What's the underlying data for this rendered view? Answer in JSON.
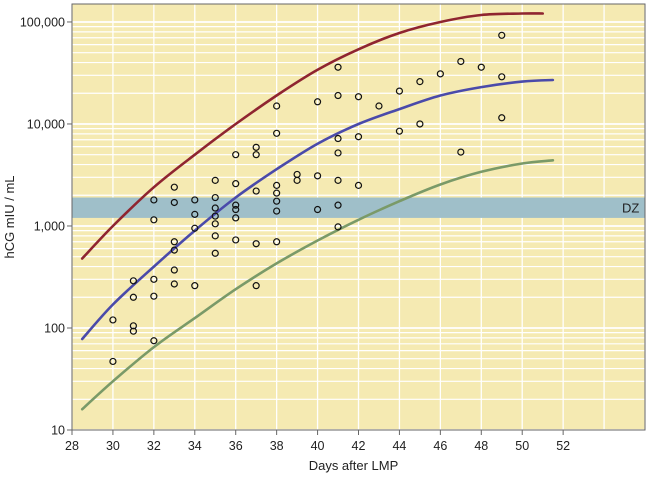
{
  "chart_data": {
    "type": "scatter",
    "xlabel": "Days after LMP",
    "ylabel": "hCG mIU / mL",
    "xlim": [
      28,
      56
    ],
    "ylim": [
      10,
      150000
    ],
    "y_scale": "log",
    "x_ticks": [
      "28",
      "30",
      "32",
      "34",
      "36",
      "38",
      "40",
      "42",
      "44",
      "46",
      "48",
      "50",
      "52"
    ],
    "y_ticks": [
      {
        "value": 10,
        "label": "10"
      },
      {
        "value": 100,
        "label": "100"
      },
      {
        "value": 1000,
        "label": "1,000"
      },
      {
        "value": 10000,
        "label": "10,000"
      },
      {
        "value": 100000,
        "label": "100,000"
      }
    ],
    "grid": true,
    "band": {
      "label": "DZ",
      "y_range": [
        1200,
        1900
      ],
      "color": "#9fbfc9"
    },
    "colors": {
      "plot_background": "#f5eab2",
      "grid": "#ffffff",
      "frame": "#666666",
      "points": "#111111"
    },
    "curves": [
      {
        "color": "#8f2530",
        "x": [
          28.5,
          30,
          32,
          34,
          36,
          38,
          40,
          42,
          44,
          46,
          48,
          50,
          51
        ],
        "y": [
          480,
          1000,
          2400,
          5000,
          10000,
          19000,
          34000,
          54000,
          78000,
          100000,
          117000,
          121000,
          121000
        ]
      },
      {
        "color": "#4a4aaa",
        "x": [
          28.5,
          30,
          32,
          34,
          36,
          38,
          40,
          42,
          44,
          46,
          48,
          50,
          51.5
        ],
        "y": [
          78,
          170,
          400,
          900,
          1900,
          3600,
          6400,
          10000,
          14000,
          19000,
          23000,
          26000,
          27000
        ]
      },
      {
        "color": "#7a9a68",
        "x": [
          28.5,
          30,
          32,
          34,
          36,
          38,
          40,
          42,
          44,
          46,
          48,
          50,
          51.5
        ],
        "y": [
          16,
          30,
          65,
          125,
          240,
          430,
          720,
          1150,
          1750,
          2550,
          3400,
          4100,
          4400
        ]
      }
    ],
    "points": [
      {
        "x": 30,
        "y": 120
      },
      {
        "x": 30,
        "y": 47
      },
      {
        "x": 31,
        "y": 290
      },
      {
        "x": 31,
        "y": 200
      },
      {
        "x": 31,
        "y": 105
      },
      {
        "x": 31,
        "y": 93
      },
      {
        "x": 32,
        "y": 1800
      },
      {
        "x": 32,
        "y": 1150
      },
      {
        "x": 32,
        "y": 300
      },
      {
        "x": 32,
        "y": 205
      },
      {
        "x": 32,
        "y": 75
      },
      {
        "x": 33,
        "y": 2400
      },
      {
        "x": 33,
        "y": 1700
      },
      {
        "x": 33,
        "y": 700
      },
      {
        "x": 33,
        "y": 580
      },
      {
        "x": 33,
        "y": 370
      },
      {
        "x": 33,
        "y": 270
      },
      {
        "x": 34,
        "y": 1800
      },
      {
        "x": 34,
        "y": 1300
      },
      {
        "x": 34,
        "y": 950
      },
      {
        "x": 34,
        "y": 260
      },
      {
        "x": 35,
        "y": 2800
      },
      {
        "x": 35,
        "y": 1900
      },
      {
        "x": 35,
        "y": 1500
      },
      {
        "x": 35,
        "y": 1250
      },
      {
        "x": 35,
        "y": 1050
      },
      {
        "x": 35,
        "y": 800
      },
      {
        "x": 35,
        "y": 540
      },
      {
        "x": 36,
        "y": 5000
      },
      {
        "x": 36,
        "y": 2600
      },
      {
        "x": 36,
        "y": 1600
      },
      {
        "x": 36,
        "y": 1450
      },
      {
        "x": 36,
        "y": 1200
      },
      {
        "x": 36,
        "y": 730
      },
      {
        "x": 37,
        "y": 5900
      },
      {
        "x": 37,
        "y": 5000
      },
      {
        "x": 37,
        "y": 2200
      },
      {
        "x": 37,
        "y": 670
      },
      {
        "x": 37,
        "y": 260
      },
      {
        "x": 38,
        "y": 15000
      },
      {
        "x": 38,
        "y": 8100
      },
      {
        "x": 38,
        "y": 2500
      },
      {
        "x": 38,
        "y": 2100
      },
      {
        "x": 38,
        "y": 1750
      },
      {
        "x": 38,
        "y": 1400
      },
      {
        "x": 38,
        "y": 700
      },
      {
        "x": 39,
        "y": 3200
      },
      {
        "x": 39,
        "y": 2800
      },
      {
        "x": 40,
        "y": 16500
      },
      {
        "x": 40,
        "y": 3100
      },
      {
        "x": 40,
        "y": 1450
      },
      {
        "x": 41,
        "y": 36000
      },
      {
        "x": 41,
        "y": 19000
      },
      {
        "x": 41,
        "y": 7200
      },
      {
        "x": 41,
        "y": 5200
      },
      {
        "x": 41,
        "y": 2800
      },
      {
        "x": 41,
        "y": 1600
      },
      {
        "x": 41,
        "y": 980
      },
      {
        "x": 42,
        "y": 18500
      },
      {
        "x": 42,
        "y": 7500
      },
      {
        "x": 42,
        "y": 2500
      },
      {
        "x": 43,
        "y": 15000
      },
      {
        "x": 44,
        "y": 21000
      },
      {
        "x": 44,
        "y": 8500
      },
      {
        "x": 45,
        "y": 26000
      },
      {
        "x": 45,
        "y": 10000
      },
      {
        "x": 46,
        "y": 31000
      },
      {
        "x": 47,
        "y": 41000
      },
      {
        "x": 47,
        "y": 5300
      },
      {
        "x": 48,
        "y": 36000
      },
      {
        "x": 49,
        "y": 74000
      },
      {
        "x": 49,
        "y": 29000
      },
      {
        "x": 49,
        "y": 11500
      }
    ]
  }
}
